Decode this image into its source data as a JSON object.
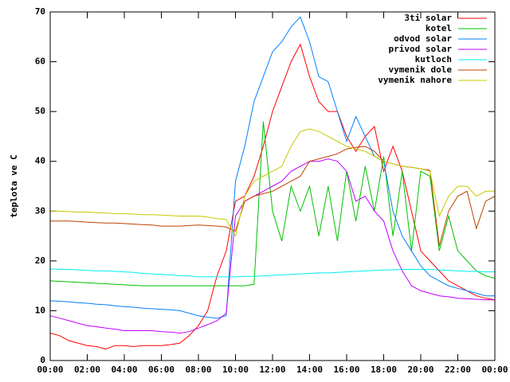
{
  "chart_data": {
    "type": "line",
    "ylabel": "teplota ve C",
    "x": [
      0,
      0.5,
      1,
      1.5,
      2,
      2.5,
      3,
      3.5,
      4,
      4.5,
      5,
      5.5,
      6,
      6.5,
      7,
      7.5,
      8,
      8.5,
      9,
      9.5,
      10,
      10.5,
      11,
      11.5,
      12,
      12.5,
      13,
      13.5,
      14,
      14.5,
      15,
      15.5,
      16,
      16.5,
      17,
      17.5,
      18,
      18.5,
      19,
      19.5,
      20,
      20.5,
      21,
      21.5,
      22,
      22.5,
      23,
      23.5,
      24
    ],
    "xlim": [
      0,
      24
    ],
    "xticks": [
      {
        "value": 0,
        "label": "00:00"
      },
      {
        "value": 2,
        "label": "02:00"
      },
      {
        "value": 4,
        "label": "04:00"
      },
      {
        "value": 6,
        "label": "06:00"
      },
      {
        "value": 8,
        "label": "08:00"
      },
      {
        "value": 10,
        "label": "10:00"
      },
      {
        "value": 12,
        "label": "12:00"
      },
      {
        "value": 14,
        "label": "14:00"
      },
      {
        "value": 16,
        "label": "16:00"
      },
      {
        "value": 18,
        "label": "18:00"
      },
      {
        "value": 20,
        "label": "20:00"
      },
      {
        "value": 22,
        "label": "22:00"
      },
      {
        "value": 24,
        "label": "00:00"
      }
    ],
    "ylim": [
      0,
      70
    ],
    "yticks": [
      0,
      10,
      20,
      30,
      40,
      50,
      60,
      70
    ],
    "legend": "top-right",
    "series": [
      {
        "name": "3ti solar",
        "color": "#ff0000",
        "values": [
          5.5,
          5,
          4,
          3.5,
          3,
          2.8,
          2.3,
          3,
          3,
          2.8,
          3,
          3,
          3,
          3.2,
          3.5,
          5,
          7,
          10,
          17,
          22,
          32,
          33,
          37,
          43,
          50,
          55,
          60,
          63.5,
          57,
          52,
          50,
          50,
          45,
          42,
          45,
          47,
          38,
          43,
          38,
          30,
          22,
          20,
          18,
          16,
          15,
          14,
          13,
          12.5,
          12.2
        ]
      },
      {
        "name": "kotel",
        "color": "#00c000",
        "values": [
          16,
          15.9,
          15.8,
          15.7,
          15.6,
          15.5,
          15.4,
          15.3,
          15.2,
          15.1,
          15,
          15,
          15,
          15,
          15,
          15,
          15,
          15,
          15,
          15,
          15,
          15,
          15.3,
          48,
          30,
          24,
          35,
          30,
          35,
          25,
          35,
          24,
          38,
          28,
          39,
          30,
          41,
          25,
          38,
          22,
          38,
          37,
          22,
          29,
          22,
          20,
          18,
          17,
          16.5
        ]
      },
      {
        "name": "odvod solar",
        "color": "#0080ff",
        "values": [
          12,
          11.9,
          11.8,
          11.6,
          11.5,
          11.3,
          11.2,
          11,
          10.8,
          10.7,
          10.5,
          10.4,
          10.3,
          10.2,
          10,
          9.5,
          9,
          8.7,
          8.5,
          9,
          36,
          43,
          52,
          57,
          62,
          64,
          67,
          69,
          64,
          57,
          56,
          50,
          44,
          49,
          45,
          41,
          40,
          30,
          25,
          22,
          19,
          17,
          16,
          15,
          14.5,
          14,
          13.5,
          13,
          13
        ]
      },
      {
        "name": "privod solar",
        "color": "#c000ff",
        "values": [
          9,
          8.5,
          8,
          7.5,
          7,
          6.8,
          6.5,
          6.3,
          6,
          6,
          6,
          6,
          5.8,
          5.7,
          5.5,
          5.8,
          6.5,
          7.2,
          8,
          9.5,
          29,
          32,
          33,
          34,
          35,
          36,
          38,
          39,
          40,
          40,
          40.5,
          40,
          38,
          32,
          33,
          30,
          28,
          22,
          18,
          15,
          14,
          13.5,
          13,
          12.8,
          12.5,
          12.4,
          12.3,
          12.2,
          12.2
        ]
      },
      {
        "name": "kutloch",
        "color": "#00eeee",
        "values": [
          18.4,
          18.3,
          18.3,
          18.2,
          18.1,
          18,
          18,
          17.9,
          17.8,
          17.7,
          17.5,
          17.4,
          17.3,
          17.2,
          17,
          17,
          16.8,
          16.8,
          16.8,
          16.8,
          16.8,
          16.9,
          16.9,
          17,
          17.1,
          17.2,
          17.3,
          17.4,
          17.5,
          17.6,
          17.6,
          17.7,
          17.8,
          17.9,
          18,
          18.1,
          18.2,
          18.2,
          18.3,
          18.3,
          18.3,
          18.3,
          18.2,
          18.1,
          18,
          17.9,
          17.9,
          17.8,
          17.8
        ]
      },
      {
        "name": "vymenik dole",
        "color": "#c04000",
        "values": [
          28,
          28,
          28,
          27.9,
          27.8,
          27.7,
          27.6,
          27.6,
          27.5,
          27.4,
          27.3,
          27.2,
          27,
          27,
          27,
          27.1,
          27.2,
          27.1,
          27,
          26.8,
          26,
          32,
          33,
          33.5,
          34,
          35,
          36,
          37,
          40,
          40.5,
          41,
          41.5,
          42.5,
          42.8,
          43,
          42,
          40,
          39.5,
          39,
          38.8,
          38.5,
          38.2,
          23,
          30,
          33,
          34,
          26.5,
          32,
          33
        ]
      },
      {
        "name": "vymenik nahore",
        "color": "#c8c800",
        "values": [
          30,
          30,
          29.9,
          29.8,
          29.8,
          29.7,
          29.6,
          29.5,
          29.5,
          29.4,
          29.3,
          29.3,
          29.2,
          29.1,
          29,
          29,
          29,
          28.8,
          28.5,
          28.3,
          25,
          33,
          36,
          37,
          38,
          39,
          43,
          46,
          46.5,
          46,
          45,
          44,
          43,
          42.5,
          42,
          41,
          40,
          39.5,
          39,
          38.8,
          38.5,
          38,
          29,
          33,
          35,
          35,
          33,
          34,
          34
        ]
      }
    ]
  }
}
